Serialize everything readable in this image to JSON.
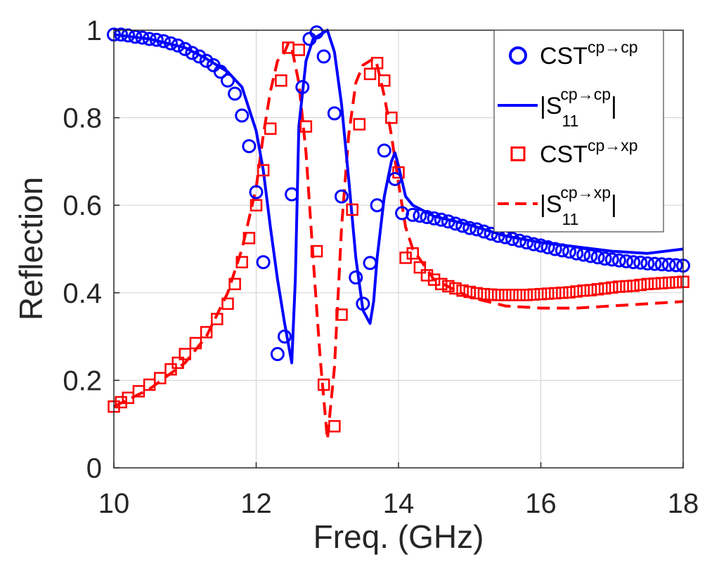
{
  "chart_data": {
    "type": "line",
    "title": "",
    "xlabel": "Freq. (GHz)",
    "ylabel": "Reflection",
    "xlim": [
      10,
      18
    ],
    "ylim": [
      0,
      1
    ],
    "x_ticks": [
      10,
      12,
      14,
      16,
      18
    ],
    "x_tick_labels": [
      "10",
      "12",
      "14",
      "16",
      "18"
    ],
    "y_ticks": [
      0,
      0.2,
      0.4,
      0.6,
      0.8,
      1
    ],
    "y_tick_labels": [
      "0",
      "0.2",
      "0.4",
      "0.6",
      "0.8",
      "1"
    ],
    "grid": true,
    "legend_position": "top-right",
    "colors": {
      "blue": "#0000ff",
      "red": "#ff0000",
      "grid": "#d0d0d0",
      "axis": "#262626"
    },
    "series": [
      {
        "name": "CST cp→cp",
        "legend_main": "CST",
        "legend_sup": "cp→cp",
        "legend_sub": "",
        "style": "circle-markers",
        "color": "#0000ff",
        "x": [
          10.0,
          10.1,
          10.2,
          10.3,
          10.4,
          10.5,
          10.6,
          10.7,
          10.8,
          10.9,
          11.0,
          11.1,
          11.2,
          11.3,
          11.4,
          11.5,
          11.6,
          11.7,
          11.8,
          11.9,
          12.0,
          12.1,
          12.3,
          12.4,
          12.5,
          12.65,
          12.75,
          12.85,
          12.95,
          13.1,
          13.2,
          13.4,
          13.5,
          13.6,
          13.7,
          13.8,
          13.95,
          14.05,
          14.2,
          14.3,
          14.4,
          14.5,
          14.6,
          14.7,
          14.8,
          14.9,
          15.0,
          15.1,
          15.2,
          15.3,
          15.4,
          15.5,
          15.6,
          15.7,
          15.8,
          15.9,
          16.0,
          16.1,
          16.2,
          16.3,
          16.4,
          16.5,
          16.6,
          16.7,
          16.8,
          16.9,
          17.0,
          17.1,
          17.2,
          17.3,
          17.4,
          17.5,
          17.6,
          17.7,
          17.8,
          17.9,
          18.0
        ],
        "y": [
          0.99,
          0.99,
          0.988,
          0.985,
          0.983,
          0.98,
          0.978,
          0.975,
          0.97,
          0.965,
          0.957,
          0.948,
          0.94,
          0.93,
          0.92,
          0.905,
          0.885,
          0.855,
          0.805,
          0.735,
          0.63,
          0.47,
          0.26,
          0.3,
          0.625,
          0.87,
          0.98,
          0.995,
          0.94,
          0.81,
          0.62,
          0.435,
          0.375,
          0.468,
          0.6,
          0.725,
          0.66,
          0.582,
          0.578,
          0.576,
          0.573,
          0.57,
          0.567,
          0.563,
          0.558,
          0.553,
          0.548,
          0.545,
          0.54,
          0.535,
          0.53,
          0.527,
          0.523,
          0.519,
          0.515,
          0.511,
          0.508,
          0.504,
          0.5,
          0.497,
          0.494,
          0.49,
          0.487,
          0.484,
          0.481,
          0.478,
          0.476,
          0.474,
          0.472,
          0.47,
          0.469,
          0.467,
          0.466,
          0.465,
          0.464,
          0.463,
          0.462
        ]
      },
      {
        "name": "|S11 cp→cp|",
        "legend_main": "|S",
        "legend_sup": "cp→cp",
        "legend_sub": "11",
        "style": "solid-line",
        "color": "#0000ff",
        "x": [
          10.0,
          10.5,
          11.0,
          11.3,
          11.6,
          11.8,
          11.9,
          12.0,
          12.1,
          12.2,
          12.3,
          12.4,
          12.5,
          12.55,
          12.6,
          12.7,
          12.8,
          12.9,
          13.0,
          13.1,
          13.2,
          13.3,
          13.4,
          13.5,
          13.6,
          13.65,
          13.7,
          13.8,
          13.9,
          13.95,
          14.0,
          14.1,
          14.2,
          14.5,
          15.0,
          15.5,
          16.0,
          16.5,
          17.0,
          17.5,
          18.0
        ],
        "y": [
          0.99,
          0.98,
          0.96,
          0.935,
          0.905,
          0.87,
          0.82,
          0.77,
          0.68,
          0.55,
          0.43,
          0.33,
          0.24,
          0.43,
          0.78,
          0.93,
          0.98,
          0.99,
          1.0,
          0.95,
          0.83,
          0.66,
          0.48,
          0.36,
          0.33,
          0.38,
          0.48,
          0.62,
          0.7,
          0.72,
          0.69,
          0.62,
          0.6,
          0.575,
          0.555,
          0.53,
          0.515,
          0.505,
          0.495,
          0.49,
          0.5
        ]
      },
      {
        "name": "CST cp→xp",
        "legend_main": "CST",
        "legend_sup": "cp→xp",
        "legend_sub": "",
        "style": "square-markers",
        "color": "#ff0000",
        "x": [
          10.0,
          10.1,
          10.2,
          10.35,
          10.5,
          10.65,
          10.8,
          10.9,
          11.0,
          11.15,
          11.3,
          11.45,
          11.6,
          11.7,
          11.8,
          11.9,
          12.0,
          12.1,
          12.2,
          12.35,
          12.45,
          12.6,
          12.7,
          12.85,
          12.95,
          13.1,
          13.2,
          13.35,
          13.45,
          13.6,
          13.7,
          13.8,
          13.9,
          14.0,
          14.1,
          14.2,
          14.3,
          14.4,
          14.5,
          14.6,
          14.7,
          14.8,
          14.9,
          15.0,
          15.1,
          15.2,
          15.3,
          15.4,
          15.5,
          15.6,
          15.7,
          15.8,
          15.9,
          16.0,
          16.1,
          16.2,
          16.3,
          16.4,
          16.5,
          16.6,
          16.7,
          16.8,
          16.9,
          17.0,
          17.1,
          17.2,
          17.3,
          17.4,
          17.5,
          17.6,
          17.7,
          17.8,
          17.9,
          18.0
        ],
        "y": [
          0.14,
          0.15,
          0.16,
          0.175,
          0.19,
          0.205,
          0.225,
          0.24,
          0.26,
          0.285,
          0.31,
          0.34,
          0.375,
          0.42,
          0.47,
          0.525,
          0.6,
          0.68,
          0.775,
          0.885,
          0.96,
          0.955,
          0.78,
          0.495,
          0.19,
          0.095,
          0.35,
          0.59,
          0.785,
          0.9,
          0.925,
          0.885,
          0.8,
          0.675,
          0.48,
          0.49,
          0.458,
          0.44,
          0.43,
          0.42,
          0.415,
          0.41,
          0.405,
          0.402,
          0.399,
          0.397,
          0.396,
          0.395,
          0.395,
          0.395,
          0.395,
          0.395,
          0.396,
          0.397,
          0.398,
          0.399,
          0.4,
          0.401,
          0.403,
          0.405,
          0.406,
          0.408,
          0.41,
          0.412,
          0.414,
          0.415,
          0.416,
          0.418,
          0.42,
          0.421,
          0.422,
          0.423,
          0.424,
          0.425
        ]
      },
      {
        "name": "|S11 cp→xp|",
        "legend_main": "|S",
        "legend_sup": "cp→xp",
        "legend_sub": "11",
        "style": "dashed-line",
        "color": "#ff0000",
        "x": [
          10.0,
          10.5,
          11.0,
          11.3,
          11.6,
          11.8,
          12.0,
          12.1,
          12.2,
          12.3,
          12.4,
          12.45,
          12.5,
          12.6,
          12.7,
          12.8,
          12.9,
          13.0,
          13.1,
          13.2,
          13.3,
          13.4,
          13.5,
          13.6,
          13.65,
          13.7,
          13.8,
          13.9,
          14.0,
          14.1,
          14.2,
          14.5,
          15.0,
          15.5,
          16.0,
          16.5,
          17.0,
          17.5,
          18.0
        ],
        "y": [
          0.14,
          0.18,
          0.24,
          0.3,
          0.4,
          0.5,
          0.64,
          0.76,
          0.86,
          0.93,
          0.95,
          0.97,
          0.96,
          0.88,
          0.72,
          0.48,
          0.25,
          0.065,
          0.23,
          0.55,
          0.76,
          0.88,
          0.92,
          0.93,
          0.935,
          0.92,
          0.85,
          0.76,
          0.65,
          0.55,
          0.5,
          0.43,
          0.39,
          0.37,
          0.365,
          0.365,
          0.37,
          0.375,
          0.38
        ]
      }
    ]
  }
}
